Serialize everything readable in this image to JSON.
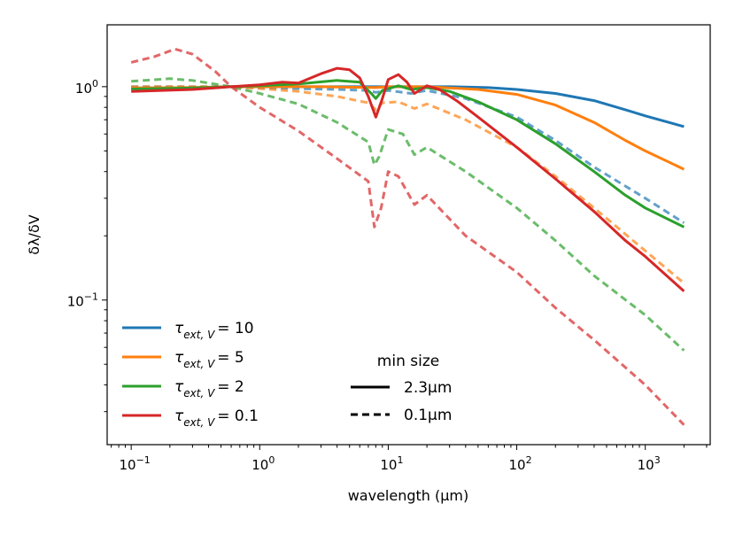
{
  "chart_data": {
    "type": "line",
    "xlabel": "wavelength (μm)",
    "ylabel": "δλ/δV",
    "xscale": "log",
    "yscale": "log",
    "xlim": [
      0.065,
      3200
    ],
    "ylim": [
      0.021,
      1.95
    ],
    "x_ticks": [
      {
        "value": 0.1,
        "base": "10",
        "exp": "−1"
      },
      {
        "value": 1,
        "base": "10",
        "exp": "0"
      },
      {
        "value": 10,
        "base": "10",
        "exp": "1"
      },
      {
        "value": 100,
        "base": "10",
        "exp": "2"
      },
      {
        "value": 1000,
        "base": "10",
        "exp": "3"
      }
    ],
    "y_ticks": [
      {
        "value": 0.1,
        "base": "10",
        "exp": "−1"
      },
      {
        "value": 1,
        "base": "10",
        "exp": "0"
      }
    ],
    "grid": false,
    "legend_tau": {
      "placement": "lower-left",
      "entries": [
        {
          "symbol": "τ",
          "sub": "ext, V",
          "value": "= 10",
          "color": "#1f77b4"
        },
        {
          "symbol": "τ",
          "sub": "ext, V",
          "value": "= 5",
          "color": "#ff7f0e"
        },
        {
          "symbol": "τ",
          "sub": "ext, V",
          "value": "= 2",
          "color": "#2ca02c"
        },
        {
          "symbol": "τ",
          "sub": "ext, V",
          "value": "= 0.1",
          "color": "#d62728"
        }
      ]
    },
    "legend_size": {
      "placement": "lower-center",
      "title": "min size",
      "entries": [
        {
          "label": "2.3μm",
          "style": "solid"
        },
        {
          "label": "0.1μm",
          "style": "dashed"
        }
      ]
    },
    "series": [
      {
        "tau": "10",
        "min_size": "2.3μm",
        "style": "solid",
        "color": "#1f77b4",
        "points": [
          [
            0.1,
            0.985
          ],
          [
            0.3,
            0.99
          ],
          [
            0.6,
            1.0
          ],
          [
            1,
            1.0
          ],
          [
            3,
            1.0
          ],
          [
            10,
            1.0
          ],
          [
            30,
            1.0
          ],
          [
            60,
            0.99
          ],
          [
            100,
            0.97
          ],
          [
            200,
            0.93
          ],
          [
            400,
            0.86
          ],
          [
            700,
            0.78
          ],
          [
            1000,
            0.73
          ],
          [
            2000,
            0.65
          ]
        ]
      },
      {
        "tau": "5",
        "min_size": "2.3μm",
        "style": "solid",
        "color": "#ff7f0e",
        "points": [
          [
            0.1,
            0.985
          ],
          [
            0.3,
            0.99
          ],
          [
            0.6,
            1.0
          ],
          [
            1,
            1.0
          ],
          [
            3,
            1.0
          ],
          [
            8,
            0.99
          ],
          [
            10,
            1.0
          ],
          [
            20,
            1.0
          ],
          [
            50,
            0.97
          ],
          [
            100,
            0.92
          ],
          [
            200,
            0.82
          ],
          [
            400,
            0.68
          ],
          [
            700,
            0.56
          ],
          [
            1000,
            0.5
          ],
          [
            2000,
            0.41
          ]
        ]
      },
      {
        "tau": "2",
        "min_size": "2.3μm",
        "style": "solid",
        "color": "#2ca02c",
        "points": [
          [
            0.1,
            0.975
          ],
          [
            0.3,
            0.985
          ],
          [
            0.6,
            1.0
          ],
          [
            1,
            1.01
          ],
          [
            2,
            1.03
          ],
          [
            4,
            1.07
          ],
          [
            6,
            1.05
          ],
          [
            7.5,
            0.92
          ],
          [
            8,
            0.88
          ],
          [
            9,
            0.96
          ],
          [
            12,
            1.01
          ],
          [
            15,
            0.97
          ],
          [
            20,
            0.99
          ],
          [
            30,
            0.95
          ],
          [
            50,
            0.85
          ],
          [
            100,
            0.7
          ],
          [
            200,
            0.54
          ],
          [
            400,
            0.4
          ],
          [
            700,
            0.31
          ],
          [
            1000,
            0.27
          ],
          [
            2000,
            0.22
          ]
        ]
      },
      {
        "tau": "0.1",
        "min_size": "2.3μm",
        "style": "solid",
        "color": "#d62728",
        "points": [
          [
            0.1,
            0.95
          ],
          [
            0.3,
            0.97
          ],
          [
            0.6,
            1.0
          ],
          [
            1,
            1.02
          ],
          [
            1.5,
            1.05
          ],
          [
            2,
            1.04
          ],
          [
            3,
            1.15
          ],
          [
            4,
            1.22
          ],
          [
            5,
            1.2
          ],
          [
            6,
            1.1
          ],
          [
            7,
            0.9
          ],
          [
            8,
            0.72
          ],
          [
            9,
            0.88
          ],
          [
            10,
            1.08
          ],
          [
            12,
            1.14
          ],
          [
            14,
            1.05
          ],
          [
            16,
            0.93
          ],
          [
            18,
            0.97
          ],
          [
            20,
            1.01
          ],
          [
            25,
            0.97
          ],
          [
            35,
            0.85
          ],
          [
            50,
            0.72
          ],
          [
            100,
            0.52
          ],
          [
            200,
            0.37
          ],
          [
            400,
            0.26
          ],
          [
            700,
            0.19
          ],
          [
            1000,
            0.16
          ],
          [
            2000,
            0.11
          ]
        ]
      },
      {
        "tau": "10",
        "min_size": "0.1μm",
        "style": "dashed",
        "color": "#1f77b4",
        "points": [
          [
            0.1,
            1.0
          ],
          [
            0.3,
            1.0
          ],
          [
            0.6,
            1.0
          ],
          [
            1,
            0.99
          ],
          [
            2,
            0.98
          ],
          [
            4,
            0.97
          ],
          [
            7,
            0.96
          ],
          [
            8,
            0.94
          ],
          [
            10,
            0.96
          ],
          [
            15,
            0.93
          ],
          [
            20,
            0.96
          ],
          [
            40,
            0.88
          ],
          [
            100,
            0.72
          ],
          [
            200,
            0.56
          ],
          [
            400,
            0.42
          ],
          [
            1000,
            0.3
          ],
          [
            2000,
            0.23
          ]
        ]
      },
      {
        "tau": "5",
        "min_size": "0.1μm",
        "style": "dashed",
        "color": "#ff7f0e",
        "points": [
          [
            0.1,
            1.0
          ],
          [
            0.3,
            1.0
          ],
          [
            0.6,
            1.0
          ],
          [
            1,
            0.98
          ],
          [
            2,
            0.95
          ],
          [
            4,
            0.9
          ],
          [
            7,
            0.84
          ],
          [
            8,
            0.78
          ],
          [
            9,
            0.84
          ],
          [
            12,
            0.85
          ],
          [
            16,
            0.79
          ],
          [
            20,
            0.83
          ],
          [
            40,
            0.7
          ],
          [
            100,
            0.52
          ],
          [
            200,
            0.38
          ],
          [
            400,
            0.27
          ],
          [
            1000,
            0.17
          ],
          [
            2000,
            0.12
          ]
        ]
      },
      {
        "tau": "2",
        "min_size": "0.1μm",
        "style": "dashed",
        "color": "#2ca02c",
        "points": [
          [
            0.1,
            1.06
          ],
          [
            0.2,
            1.09
          ],
          [
            0.3,
            1.07
          ],
          [
            0.6,
            1.0
          ],
          [
            1,
            0.93
          ],
          [
            2,
            0.83
          ],
          [
            4,
            0.68
          ],
          [
            7,
            0.55
          ],
          [
            7.8,
            0.43
          ],
          [
            8.5,
            0.47
          ],
          [
            10,
            0.63
          ],
          [
            13,
            0.6
          ],
          [
            16,
            0.48
          ],
          [
            20,
            0.52
          ],
          [
            40,
            0.4
          ],
          [
            100,
            0.27
          ],
          [
            200,
            0.19
          ],
          [
            400,
            0.13
          ],
          [
            1000,
            0.085
          ],
          [
            2000,
            0.058
          ]
        ]
      },
      {
        "tau": "0.1",
        "min_size": "0.1μm",
        "style": "dashed",
        "color": "#d62728",
        "points": [
          [
            0.1,
            1.3
          ],
          [
            0.15,
            1.38
          ],
          [
            0.22,
            1.5
          ],
          [
            0.3,
            1.42
          ],
          [
            0.45,
            1.18
          ],
          [
            0.6,
            1.0
          ],
          [
            1,
            0.8
          ],
          [
            2,
            0.62
          ],
          [
            4,
            0.46
          ],
          [
            7,
            0.36
          ],
          [
            7.8,
            0.22
          ],
          [
            8.8,
            0.27
          ],
          [
            10,
            0.4
          ],
          [
            12,
            0.38
          ],
          [
            16,
            0.28
          ],
          [
            20,
            0.31
          ],
          [
            40,
            0.2
          ],
          [
            100,
            0.135
          ],
          [
            200,
            0.092
          ],
          [
            400,
            0.065
          ],
          [
            1000,
            0.04
          ],
          [
            2000,
            0.026
          ]
        ]
      }
    ]
  }
}
